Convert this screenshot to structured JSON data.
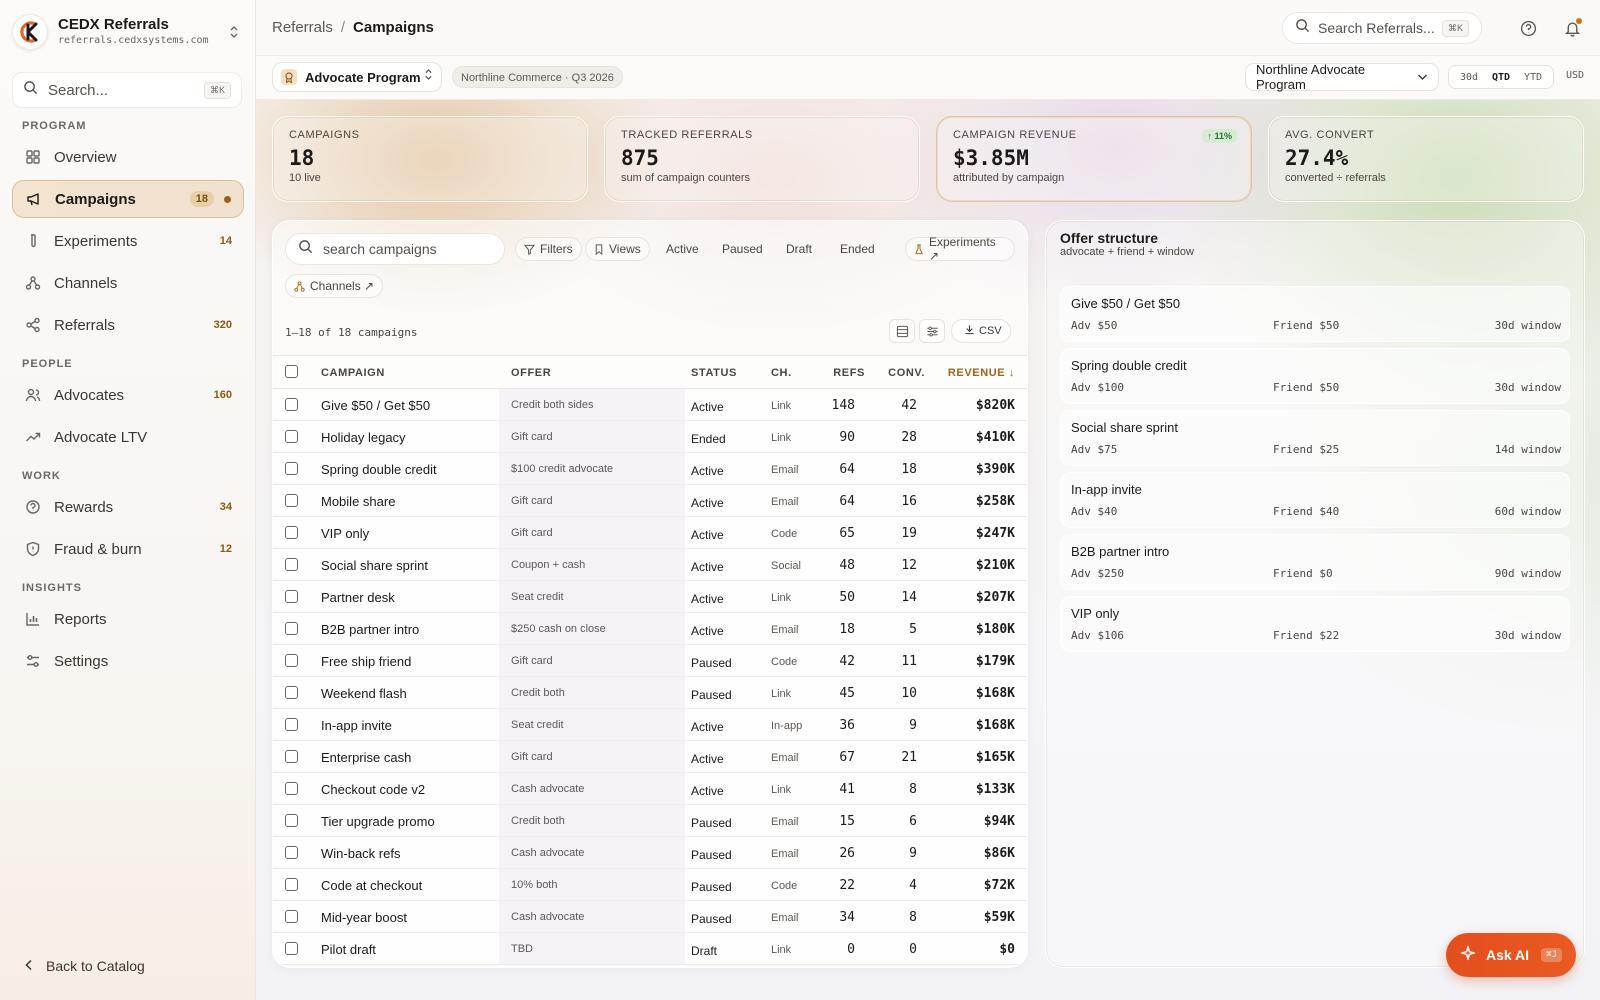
{
  "brand": {
    "name": "CEDX Referrals",
    "domain": "referrals.cedxsystems.com"
  },
  "sidebar": {
    "search_placeholder": "Search...",
    "search_shortcut": "⌘K",
    "sections": [
      {
        "title": "PROGRAM",
        "items": [
          {
            "label": "Overview",
            "icon": "grid-icon",
            "count": ""
          },
          {
            "label": "Campaigns",
            "icon": "megaphone-icon",
            "count": "18",
            "active": true
          },
          {
            "label": "Experiments",
            "icon": "flask-icon",
            "count": "14"
          },
          {
            "label": "Channels",
            "icon": "network-icon",
            "count": ""
          },
          {
            "label": "Referrals",
            "icon": "share-icon",
            "count": "320"
          }
        ]
      },
      {
        "title": "PEOPLE",
        "items": [
          {
            "label": "Advocates",
            "icon": "users-icon",
            "count": "160"
          },
          {
            "label": "Advocate LTV",
            "icon": "trend-icon",
            "count": ""
          }
        ]
      },
      {
        "title": "WORK",
        "items": [
          {
            "label": "Rewards",
            "icon": "reward-icon",
            "count": "34"
          },
          {
            "label": "Fraud & burn",
            "icon": "shield-icon",
            "count": "12"
          }
        ]
      },
      {
        "title": "INSIGHTS",
        "items": [
          {
            "label": "Reports",
            "icon": "chart-icon",
            "count": ""
          },
          {
            "label": "Settings",
            "icon": "sliders-icon",
            "count": ""
          }
        ]
      }
    ],
    "back_label": "Back to Catalog"
  },
  "header": {
    "crumb_root": "Referrals",
    "crumb_sep": "/",
    "crumb_current": "Campaigns",
    "search_placeholder": "Search Referrals...",
    "search_shortcut": "⌘K"
  },
  "subheader": {
    "program": "Advocate Program",
    "tenant": "Northline Commerce · Q3 2026",
    "program_dropdown": "Northline Advocate Program",
    "ranges": [
      "30d",
      "QTD",
      "YTD"
    ],
    "active_range": "QTD",
    "currency": "USD"
  },
  "kpis": [
    {
      "label": "CAMPAIGNS",
      "value": "18",
      "sub": "10 live",
      "delta": ""
    },
    {
      "label": "TRACKED REFERRALS",
      "value": "875",
      "sub": "sum of campaign counters",
      "delta": ""
    },
    {
      "label": "CAMPAIGN REVENUE",
      "value": "$3.85M",
      "sub": "attributed by campaign",
      "delta": "↑ 11%"
    },
    {
      "label": "AVG. CONVERT",
      "value": "27.4%",
      "sub": "converted ÷ referrals",
      "delta": ""
    }
  ],
  "toolbar": {
    "search_placeholder": "search campaigns",
    "filters": "Filters",
    "views": "Views",
    "status_chips": [
      "Active",
      "Paused",
      "Draft",
      "Ended"
    ],
    "experiments": "Experiments ↗",
    "channels": "Channels ↗",
    "count_text": "1–18 of 18 campaigns",
    "csv": "CSV"
  },
  "table": {
    "headers": {
      "campaign": "CAMPAIGN",
      "offer": "OFFER",
      "status": "STATUS",
      "channel": "CH.",
      "refs": "REFS",
      "conv": "CONV.",
      "revenue": "REVENUE ↓"
    },
    "rows": [
      {
        "campaign": "Give $50 / Get $50",
        "offer": "Credit both sides",
        "status": "Active",
        "channel": "Link",
        "refs": "148",
        "conv": "42",
        "revenue": "$820K"
      },
      {
        "campaign": "Holiday legacy",
        "offer": "Gift card",
        "status": "Ended",
        "channel": "Link",
        "refs": "90",
        "conv": "28",
        "revenue": "$410K"
      },
      {
        "campaign": "Spring double credit",
        "offer": "$100 credit advocate",
        "status": "Active",
        "channel": "Email",
        "refs": "64",
        "conv": "18",
        "revenue": "$390K"
      },
      {
        "campaign": "Mobile share",
        "offer": "Gift card",
        "status": "Active",
        "channel": "Email",
        "refs": "64",
        "conv": "16",
        "revenue": "$258K"
      },
      {
        "campaign": "VIP only",
        "offer": "Gift card",
        "status": "Active",
        "channel": "Code",
        "refs": "65",
        "conv": "19",
        "revenue": "$247K"
      },
      {
        "campaign": "Social share sprint",
        "offer": "Coupon + cash",
        "status": "Active",
        "channel": "Social",
        "refs": "48",
        "conv": "12",
        "revenue": "$210K"
      },
      {
        "campaign": "Partner desk",
        "offer": "Seat credit",
        "status": "Active",
        "channel": "Link",
        "refs": "50",
        "conv": "14",
        "revenue": "$207K"
      },
      {
        "campaign": "B2B partner intro",
        "offer": "$250 cash on close",
        "status": "Active",
        "channel": "Email",
        "refs": "18",
        "conv": "5",
        "revenue": "$180K"
      },
      {
        "campaign": "Free ship friend",
        "offer": "Gift card",
        "status": "Paused",
        "channel": "Code",
        "refs": "42",
        "conv": "11",
        "revenue": "$179K"
      },
      {
        "campaign": "Weekend flash",
        "offer": "Credit both",
        "status": "Paused",
        "channel": "Link",
        "refs": "45",
        "conv": "10",
        "revenue": "$168K"
      },
      {
        "campaign": "In-app invite",
        "offer": "Seat credit",
        "status": "Active",
        "channel": "In-app",
        "refs": "36",
        "conv": "9",
        "revenue": "$168K"
      },
      {
        "campaign": "Enterprise cash",
        "offer": "Gift card",
        "status": "Active",
        "channel": "Email",
        "refs": "67",
        "conv": "21",
        "revenue": "$165K"
      },
      {
        "campaign": "Checkout code v2",
        "offer": "Cash advocate",
        "status": "Active",
        "channel": "Link",
        "refs": "41",
        "conv": "8",
        "revenue": "$133K"
      },
      {
        "campaign": "Tier upgrade promo",
        "offer": "Credit both",
        "status": "Paused",
        "channel": "Email",
        "refs": "15",
        "conv": "6",
        "revenue": "$94K"
      },
      {
        "campaign": "Win-back refs",
        "offer": "Cash advocate",
        "status": "Paused",
        "channel": "Email",
        "refs": "26",
        "conv": "9",
        "revenue": "$86K"
      },
      {
        "campaign": "Code at checkout",
        "offer": "10% both",
        "status": "Paused",
        "channel": "Code",
        "refs": "22",
        "conv": "4",
        "revenue": "$72K"
      },
      {
        "campaign": "Mid-year boost",
        "offer": "Cash advocate",
        "status": "Paused",
        "channel": "Email",
        "refs": "34",
        "conv": "8",
        "revenue": "$59K"
      },
      {
        "campaign": "Pilot draft",
        "offer": "TBD",
        "status": "Draft",
        "channel": "Link",
        "refs": "0",
        "conv": "0",
        "revenue": "$0"
      }
    ]
  },
  "offer_structure": {
    "title": "Offer structure",
    "subtitle": "advocate + friend + window",
    "items": [
      {
        "name": "Give $50 / Get $50",
        "adv": "Adv $50",
        "friend": "Friend $50",
        "window": "30d window"
      },
      {
        "name": "Spring double credit",
        "adv": "Adv $100",
        "friend": "Friend $50",
        "window": "30d window"
      },
      {
        "name": "Social share sprint",
        "adv": "Adv $75",
        "friend": "Friend $25",
        "window": "14d window"
      },
      {
        "name": "In-app invite",
        "adv": "Adv $40",
        "friend": "Friend $40",
        "window": "60d window"
      },
      {
        "name": "B2B partner intro",
        "adv": "Adv $250",
        "friend": "Friend $0",
        "window": "90d window"
      },
      {
        "name": "VIP only",
        "adv": "Adv $106",
        "friend": "Friend $22",
        "window": "30d window"
      }
    ]
  },
  "ask_ai": {
    "label": "Ask AI",
    "shortcut": "⌘J"
  },
  "colors": {
    "accent": "#e34e1d",
    "brand_orange": "#d4731c",
    "active_nav": "#f3e3cf"
  }
}
